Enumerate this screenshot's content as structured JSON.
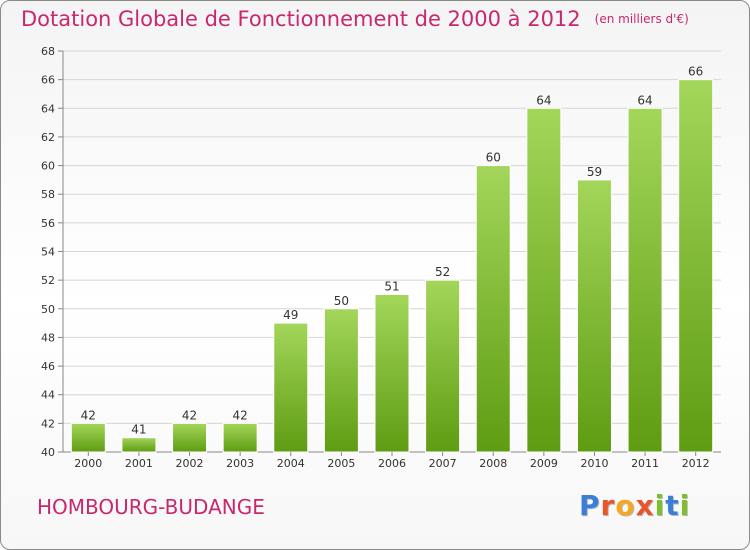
{
  "header": {
    "title": "Dotation Globale de Fonctionnement de 2000 à 2012",
    "units": "(en milliers d'€)"
  },
  "footer": {
    "commune": "HOMBOURG-BUDANGE",
    "logo_text": "Proxiti"
  },
  "colors": {
    "title": "#c8286e",
    "bar_top": "#a3d65a",
    "bar_bottom": "#5e9c12",
    "logo": [
      "#3a7fd5",
      "#e8552c",
      "#f5a623",
      "#e8552c",
      "#7bbf2a",
      "#3a7fd5",
      "#7bbf2a"
    ]
  },
  "chart_data": {
    "type": "bar",
    "categories": [
      "2000",
      "2001",
      "2002",
      "2003",
      "2004",
      "2005",
      "2006",
      "2007",
      "2008",
      "2009",
      "2010",
      "2011",
      "2012"
    ],
    "values": [
      42,
      41,
      42,
      42,
      49,
      50,
      51,
      52,
      60,
      64,
      59,
      64,
      66
    ],
    "ylim": [
      40,
      68
    ],
    "yticks": [
      40,
      42,
      44,
      46,
      48,
      50,
      52,
      54,
      56,
      58,
      60,
      62,
      64,
      66,
      68
    ],
    "grid": true,
    "data_labels": true
  }
}
